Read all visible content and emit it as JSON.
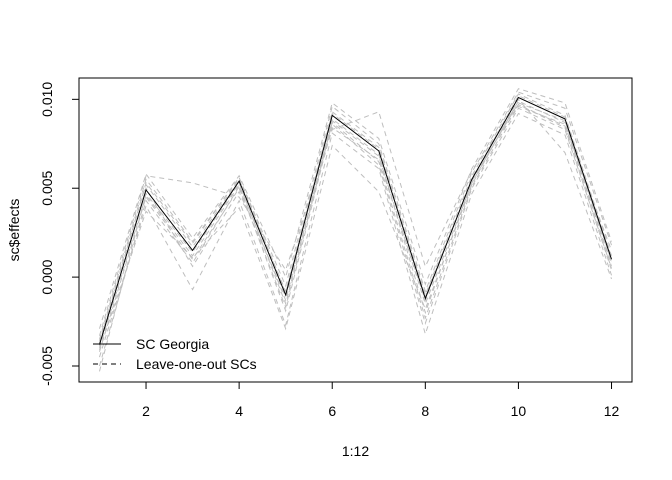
{
  "chart_data": {
    "type": "line",
    "xlabel": "1:12",
    "ylabel": "sc$effects",
    "x": [
      1,
      2,
      3,
      4,
      5,
      6,
      7,
      8,
      9,
      10,
      11,
      12
    ],
    "xticks": [
      2,
      4,
      6,
      8,
      10,
      12
    ],
    "yticks": [
      -0.005,
      0.0,
      0.005,
      0.01
    ],
    "ytick_labels": [
      "-0.005",
      "0.000",
      "0.005",
      "0.010"
    ],
    "xlim": [
      0.56,
      12.44
    ],
    "ylim": [
      -0.0059,
      0.0112
    ],
    "grid": false,
    "legend_position": "bottom-left",
    "colors": {
      "main": "#000000",
      "loo": "#bebebe"
    },
    "main_series": {
      "name": "SC Georgia",
      "values": [
        -0.0038,
        0.0049,
        0.0015,
        0.0054,
        -0.001,
        0.0091,
        0.0071,
        -0.0012,
        0.0055,
        0.0101,
        0.0089,
        0.001
      ]
    },
    "loo_series": [
      {
        "values": [
          -0.0036,
          0.0052,
          0.0017,
          0.0055,
          -0.0008,
          0.0093,
          0.0073,
          -0.001,
          0.0057,
          0.0103,
          0.0091,
          0.0012
        ]
      },
      {
        "values": [
          -0.004,
          0.0046,
          0.0012,
          0.0052,
          -0.0013,
          0.0088,
          0.0068,
          -0.0015,
          0.0053,
          0.0099,
          0.0087,
          0.0008
        ]
      },
      {
        "values": [
          -0.0045,
          0.004,
          -0.0007,
          0.0043,
          -0.0027,
          0.0081,
          0.0061,
          -0.0032,
          0.0047,
          0.0092,
          0.008,
          0.0001
        ]
      },
      {
        "values": [
          -0.0033,
          0.0057,
          0.0053,
          0.0045,
          0.0004,
          0.0083,
          0.0093,
          0.0006,
          0.006,
          0.0097,
          0.0085,
          0.0015
        ]
      },
      {
        "values": [
          -0.005,
          0.0043,
          0.0008,
          0.0051,
          -0.0019,
          0.0086,
          0.0063,
          -0.0026,
          0.005,
          0.0095,
          0.0083,
          0.0005
        ]
      },
      {
        "values": [
          -0.0029,
          0.0058,
          0.0022,
          0.0057,
          0.0,
          0.0098,
          0.0078,
          -0.0004,
          0.0061,
          0.0106,
          0.0098,
          0.002
        ]
      },
      {
        "values": [
          -0.0041,
          0.0037,
          0.0011,
          0.0039,
          -0.0029,
          0.0074,
          0.0048,
          -0.0018,
          0.0052,
          0.01,
          0.007,
          -0.0001
        ]
      },
      {
        "values": [
          -0.0035,
          0.0055,
          0.002,
          0.0056,
          -0.0005,
          0.0096,
          0.0075,
          -0.0008,
          0.0059,
          0.0104,
          0.0095,
          0.0018
        ]
      },
      {
        "values": [
          -0.0053,
          0.0047,
          0.0014,
          0.0053,
          -0.0015,
          0.0089,
          0.0069,
          -0.002,
          0.0054,
          0.0098,
          0.0088,
          0.0009
        ]
      },
      {
        "values": [
          -0.0039,
          0.005,
          0.0006,
          0.0048,
          -0.0011,
          0.0084,
          0.0066,
          -0.0013,
          0.0056,
          0.0096,
          0.0086,
          0.0006
        ]
      },
      {
        "values": [
          -0.0037,
          0.0053,
          0.0019,
          0.0056,
          -0.0009,
          0.0092,
          0.0072,
          -0.0011,
          0.0055,
          0.0102,
          0.009,
          0.0011
        ]
      },
      {
        "values": [
          -0.0042,
          0.0045,
          0.001,
          0.005,
          -0.0017,
          0.0087,
          0.0065,
          -0.0023,
          0.0051,
          0.0097,
          0.0084,
          0.0004
        ]
      }
    ],
    "legend": [
      {
        "label": "SC Georgia",
        "style": "solid"
      },
      {
        "label": "Leave-one-out SCs",
        "style": "dashed"
      }
    ]
  }
}
